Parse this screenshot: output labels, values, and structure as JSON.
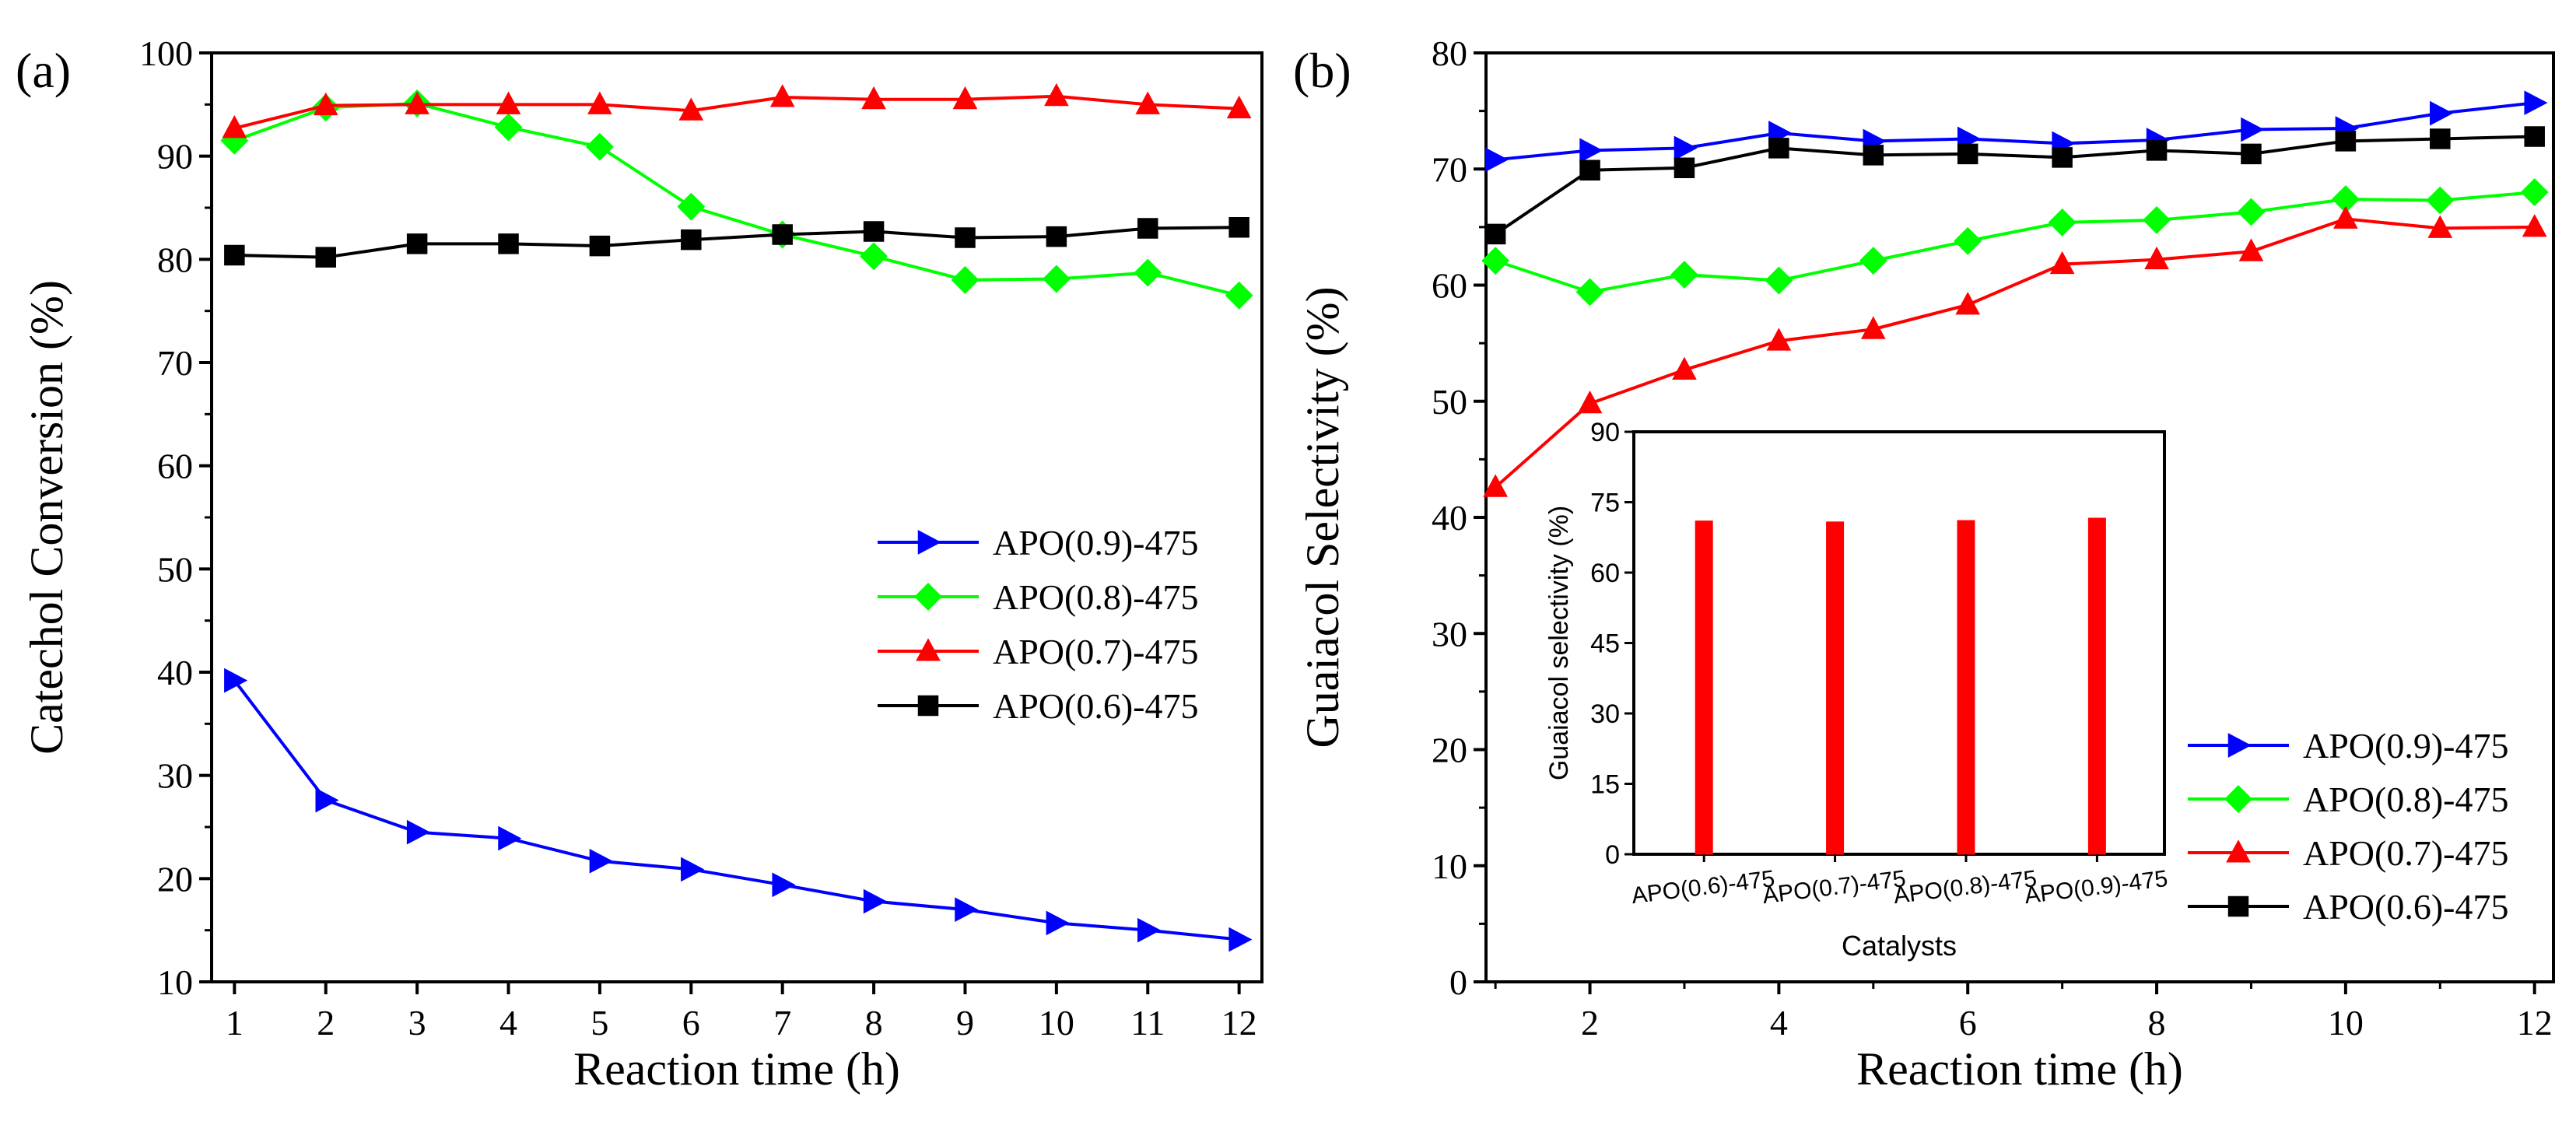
{
  "chart_data": [
    {
      "panel_label": "(a)",
      "type": "line",
      "xlabel": "Reaction time (h)",
      "ylabel": "Catechol Conversion (%)",
      "xlim": [
        0.75,
        12.25
      ],
      "ylim": [
        10,
        100
      ],
      "xticks": [
        1,
        2,
        3,
        4,
        5,
        6,
        7,
        8,
        9,
        10,
        11,
        12
      ],
      "yticks": [
        10,
        20,
        30,
        40,
        50,
        60,
        70,
        80,
        90,
        100
      ],
      "legend_position": "center-right",
      "x": [
        1,
        2,
        3,
        4,
        5,
        6,
        7,
        8,
        9,
        10,
        11,
        12
      ],
      "series": [
        {
          "name": "APO(0.9)-475",
          "color": "#0000ff",
          "marker": "triangle-right",
          "values": [
            39.2,
            27.6,
            24.5,
            23.9,
            21.7,
            20.9,
            19.4,
            17.8,
            17.0,
            15.7,
            15.0,
            14.1
          ]
        },
        {
          "name": "APO(0.8)-475",
          "color": "#00ff00",
          "marker": "diamond",
          "values": [
            91.5,
            94.7,
            95.1,
            92.8,
            90.9,
            85.1,
            82.4,
            80.3,
            78.0,
            78.1,
            78.7,
            76.5
          ]
        },
        {
          "name": "APO(0.7)-475",
          "color": "#ff0000",
          "marker": "triangle-up",
          "values": [
            92.7,
            94.9,
            95.0,
            95.0,
            95.0,
            94.4,
            95.7,
            95.5,
            95.5,
            95.8,
            95.0,
            94.6
          ]
        },
        {
          "name": "APO(0.6)-475",
          "color": "#000000",
          "marker": "square",
          "values": [
            80.4,
            80.2,
            81.5,
            81.5,
            81.3,
            81.9,
            82.4,
            82.7,
            82.1,
            82.2,
            83.0,
            83.1
          ]
        }
      ]
    },
    {
      "panel_label": "(b)",
      "type": "line",
      "xlabel": "Reaction time (h)",
      "ylabel": "Guaiacol Selectivity (%)",
      "xlim": [
        0.9,
        12.2
      ],
      "ylim": [
        0,
        80
      ],
      "xticks": [
        2,
        4,
        6,
        8,
        10,
        12
      ],
      "yticks": [
        0,
        10,
        20,
        30,
        40,
        50,
        60,
        70,
        80
      ],
      "legend_position": "bottom-right",
      "x": [
        1,
        2,
        3,
        4,
        5,
        6,
        7,
        8,
        9,
        10,
        11,
        12
      ],
      "series": [
        {
          "name": "APO(0.9)-475",
          "color": "#0000ff",
          "marker": "triangle-right",
          "values": [
            70.8,
            71.6,
            71.8,
            73.1,
            72.4,
            72.6,
            72.2,
            72.5,
            73.4,
            73.5,
            74.8,
            75.7
          ]
        },
        {
          "name": "APO(0.8)-475",
          "color": "#00ff00",
          "marker": "diamond",
          "values": [
            62.1,
            59.4,
            60.9,
            60.4,
            62.1,
            63.8,
            65.4,
            65.6,
            66.3,
            67.4,
            67.3,
            68.0
          ]
        },
        {
          "name": "APO(0.7)-475",
          "color": "#ff0000",
          "marker": "triangle-up",
          "values": [
            42.6,
            49.8,
            52.7,
            55.2,
            56.2,
            58.3,
            61.8,
            62.2,
            62.9,
            65.7,
            64.9,
            65.0
          ]
        },
        {
          "name": "APO(0.6)-475",
          "color": "#000000",
          "marker": "square",
          "values": [
            64.4,
            69.9,
            70.1,
            71.8,
            71.2,
            71.3,
            71.0,
            71.6,
            71.3,
            72.4,
            72.6,
            72.8
          ]
        }
      ],
      "inset": {
        "type": "bar",
        "xlabel": "Catalysts",
        "ylabel": "Guaiacol selectivity (%)",
        "ylim": [
          0,
          90
        ],
        "yticks": [
          0,
          15,
          30,
          45,
          60,
          75,
          90
        ],
        "bar_color": "#ff0000",
        "categories": [
          "APO(0.6)-475",
          "APO(0.7)-475",
          "APO(0.8)-475",
          "APO(0.9)-475"
        ],
        "values": [
          71.0,
          70.8,
          71.1,
          71.6
        ]
      }
    }
  ]
}
